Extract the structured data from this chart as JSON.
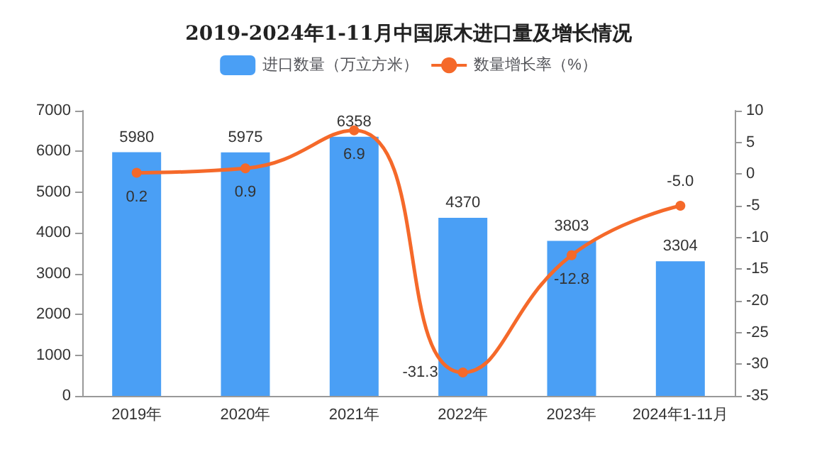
{
  "chart_data": {
    "type": "bar",
    "title": "2019-2024年1-11月中国原木进口量及增长情况",
    "categories": [
      "2019年",
      "2020年",
      "2021年",
      "2022年",
      "2023年",
      "2024年1-11月"
    ],
    "series": [
      {
        "name": "进口数量（万立方米）",
        "color": "#4a9ff5",
        "values": [
          5980,
          5975,
          6358,
          4370,
          3803,
          3304
        ],
        "value_labels": [
          "5980",
          "5975",
          "6358",
          "4370",
          "3803",
          "3304"
        ]
      },
      {
        "name": "数量增长率（%）",
        "type": "line",
        "axis": "y2",
        "color": "#f5692a",
        "values": [
          0.2,
          0.9,
          6.9,
          -31.3,
          -12.8,
          -5.0
        ],
        "value_labels": [
          "0.2",
          "0.9",
          "6.9",
          "-31.3",
          "-12.8",
          "-5.0"
        ]
      }
    ],
    "ylim": [
      0,
      7000
    ],
    "yticks": [
      0,
      1000,
      2000,
      3000,
      4000,
      5000,
      6000,
      7000
    ],
    "y2lim": [
      -35,
      10
    ],
    "y2ticks": [
      -35,
      -30,
      -25,
      -20,
      -15,
      -10,
      -5,
      0,
      5,
      10
    ],
    "legend": "top",
    "marker": "circle",
    "grid": false
  }
}
